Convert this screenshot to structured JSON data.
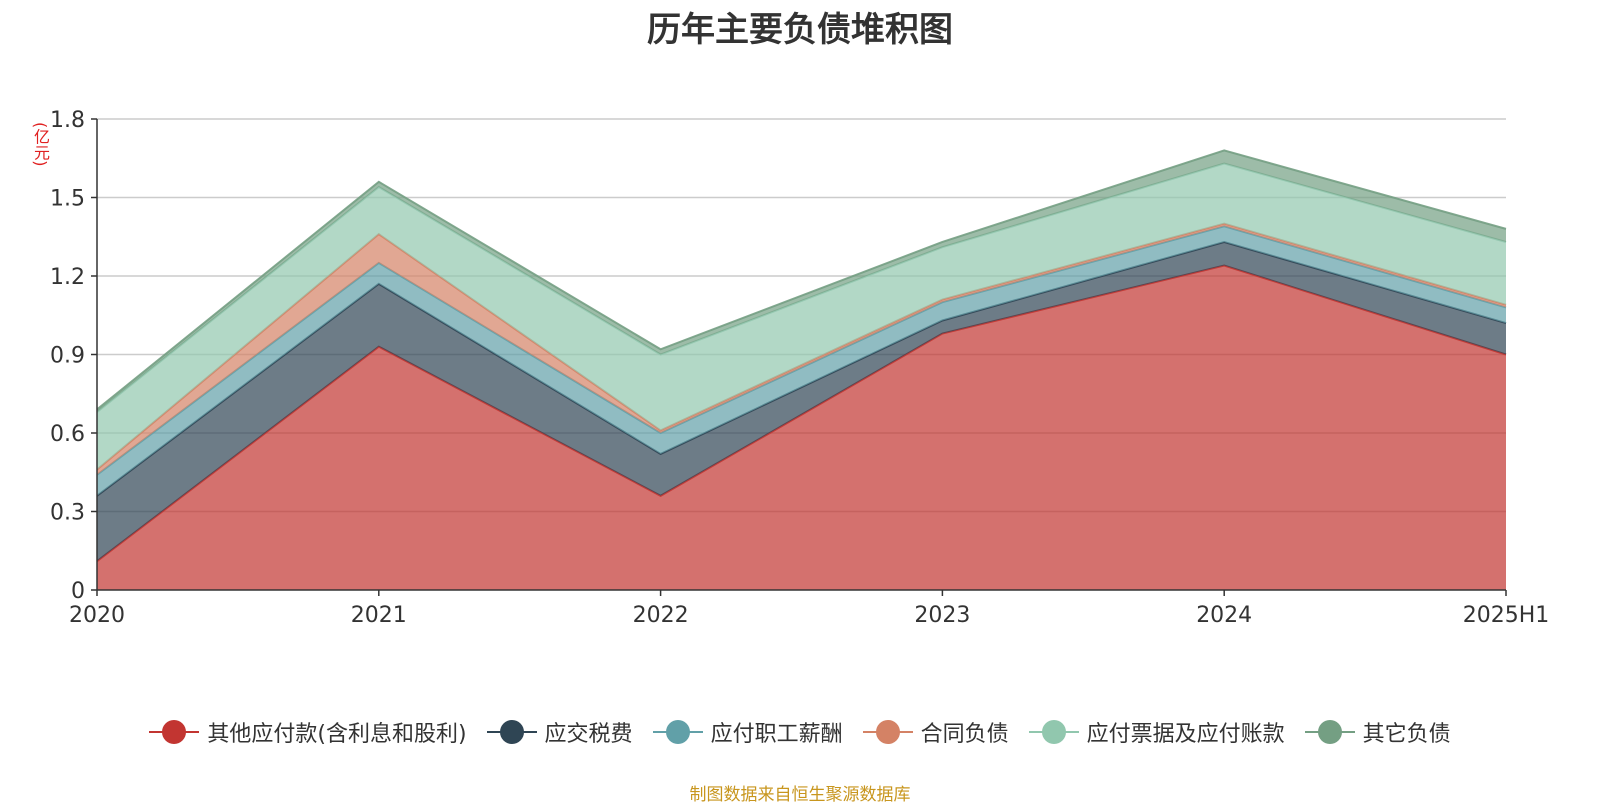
{
  "title": "历年主要负债堆积图",
  "unit": "(亿元)",
  "source": "制图数据来自恒生聚源数据库",
  "chart_data": {
    "type": "area",
    "stacked": true,
    "title": "历年主要负债堆积图",
    "ylabel": "(亿元)",
    "x": [
      "2020",
      "2021",
      "2022",
      "2023",
      "2024",
      "2025H1"
    ],
    "ylim": [
      0,
      1.8
    ],
    "yticks": [
      "0",
      "0.3",
      "0.6",
      "0.9",
      "1.2",
      "1.5",
      "1.8"
    ],
    "grid": true,
    "legend_position": "bottom",
    "series": [
      {
        "name": "其他应付款(含利息和股利)",
        "color": "#c23531",
        "values": [
          0.11,
          0.93,
          0.36,
          0.98,
          1.24,
          0.9
        ]
      },
      {
        "name": "应交税费",
        "color": "#2f4554",
        "values": [
          0.25,
          0.24,
          0.16,
          0.05,
          0.09,
          0.12
        ]
      },
      {
        "name": "应付职工薪酬",
        "color": "#61a0a8",
        "values": [
          0.08,
          0.08,
          0.08,
          0.07,
          0.06,
          0.06
        ]
      },
      {
        "name": "合同负债",
        "color": "#d48265",
        "values": [
          0.02,
          0.11,
          0.01,
          0.01,
          0.01,
          0.01
        ]
      },
      {
        "name": "应付票据及应付账款",
        "color": "#91c7ae",
        "values": [
          0.22,
          0.18,
          0.29,
          0.2,
          0.23,
          0.24
        ]
      },
      {
        "name": "其它负债",
        "color": "#749f83",
        "values": [
          0.01,
          0.02,
          0.02,
          0.02,
          0.05,
          0.05
        ]
      }
    ]
  }
}
